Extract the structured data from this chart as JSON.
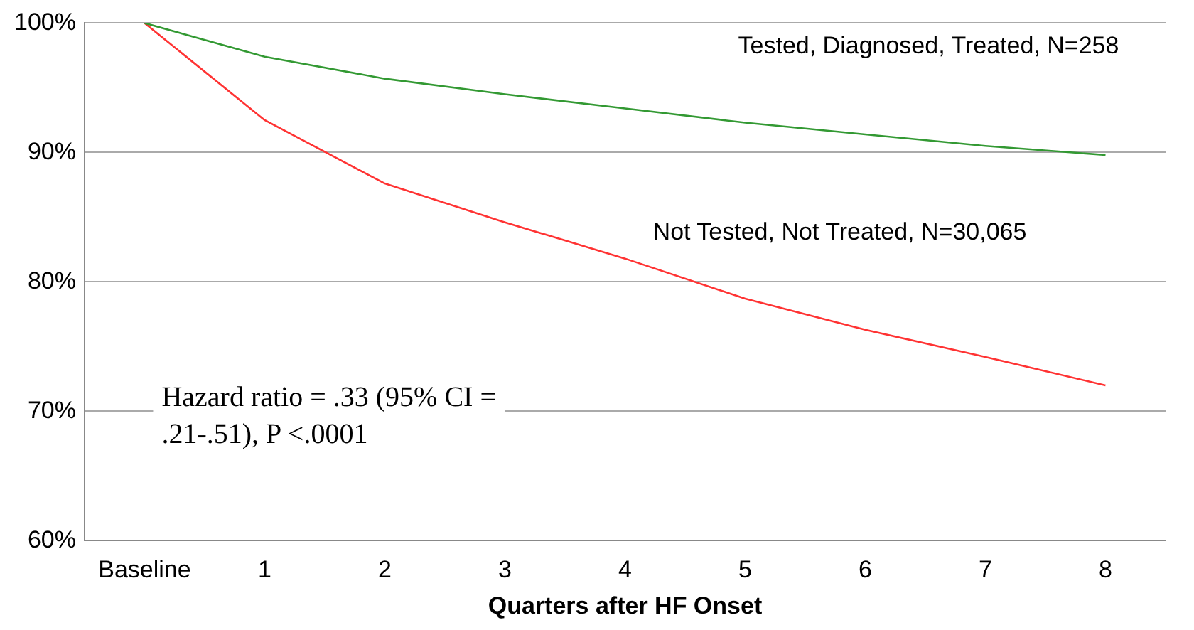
{
  "chart_data": {
    "type": "line",
    "xlabel": "Quarters after HF Onset",
    "categories": [
      "Baseline",
      "1",
      "2",
      "3",
      "4",
      "5",
      "6",
      "7",
      "8"
    ],
    "series": [
      {
        "name": "Tested, Diagnosed, Treated, N=258",
        "color": "#339933",
        "values": [
          100,
          97.4,
          95.7,
          94.5,
          93.4,
          92.3,
          91.4,
          90.5,
          89.8
        ]
      },
      {
        "name": "Not Tested, Not Treated, N=30,065",
        "color": "#ff3333",
        "values": [
          100,
          92.5,
          87.6,
          84.6,
          81.8,
          78.7,
          76.3,
          74.2,
          72.0
        ]
      }
    ],
    "ylim": [
      60,
      100
    ],
    "yticks": [
      {
        "value": 60,
        "label": "60%"
      },
      {
        "value": 70,
        "label": "70%"
      },
      {
        "value": 80,
        "label": "80%"
      },
      {
        "value": 90,
        "label": "90%"
      },
      {
        "value": 100,
        "label": "100%"
      }
    ],
    "grid": "y",
    "legend": false,
    "marker": "none",
    "line_style": "solid",
    "annotations": [
      "Hazard ratio = .33 (95% CI = .21-.51), P <.0001"
    ]
  }
}
